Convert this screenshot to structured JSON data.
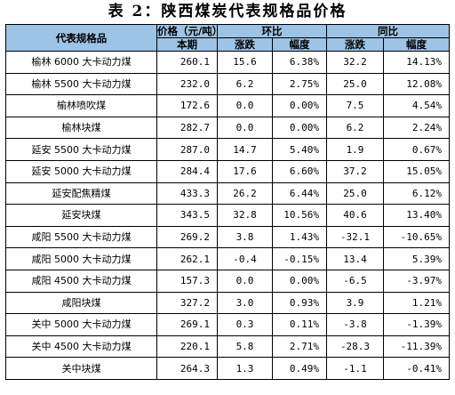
{
  "title": "表 2：陕西煤炭代表规格品价格",
  "header": {
    "name_col": "代表规格品",
    "price_col": "价格（元/吨）",
    "price_sub": "本期",
    "mom": "环比",
    "yoy": "同比",
    "change": "涨跌",
    "pct": "幅度"
  },
  "rows": [
    {
      "name": "榆林 6000 大卡动力煤",
      "price": "260.1",
      "mom_chg": "15.6",
      "mom_pct": "6.38%",
      "yoy_chg": "32.2",
      "yoy_pct": "14.13%"
    },
    {
      "name": "榆林 5500 大卡动力煤",
      "price": "232.0",
      "mom_chg": "6.2",
      "mom_pct": "2.75%",
      "yoy_chg": "25.0",
      "yoy_pct": "12.08%"
    },
    {
      "name": "榆林喷吹煤",
      "price": "172.6",
      "mom_chg": "0.0",
      "mom_pct": "0.00%",
      "yoy_chg": "7.5",
      "yoy_pct": "4.54%"
    },
    {
      "name": "榆林块煤",
      "price": "282.7",
      "mom_chg": "0.0",
      "mom_pct": "0.00%",
      "yoy_chg": "6.2",
      "yoy_pct": "2.24%"
    },
    {
      "name": "延安 5500 大卡动力煤",
      "price": "287.0",
      "mom_chg": "14.7",
      "mom_pct": "5.40%",
      "yoy_chg": "1.9",
      "yoy_pct": "0.67%"
    },
    {
      "name": "延安 5000 大卡动力煤",
      "price": "284.4",
      "mom_chg": "17.6",
      "mom_pct": "6.60%",
      "yoy_chg": "37.2",
      "yoy_pct": "15.05%"
    },
    {
      "name": "延安配焦精煤",
      "price": "433.3",
      "mom_chg": "26.2",
      "mom_pct": "6.44%",
      "yoy_chg": "25.0",
      "yoy_pct": "6.12%"
    },
    {
      "name": "延安块煤",
      "price": "343.5",
      "mom_chg": "32.8",
      "mom_pct": "10.56%",
      "yoy_chg": "40.6",
      "yoy_pct": "13.40%"
    },
    {
      "name": "咸阳 5500 大卡动力煤",
      "price": "269.2",
      "mom_chg": "3.8",
      "mom_pct": "1.43%",
      "yoy_chg": "-32.1",
      "yoy_pct": "-10.65%"
    },
    {
      "name": "咸阳 5000 大卡动力煤",
      "price": "262.1",
      "mom_chg": "-0.4",
      "mom_pct": "-0.15%",
      "yoy_chg": "13.4",
      "yoy_pct": "5.39%"
    },
    {
      "name": "咸阳 4500 大卡动力煤",
      "price": "157.3",
      "mom_chg": "0.0",
      "mom_pct": "0.00%",
      "yoy_chg": "-6.5",
      "yoy_pct": "-3.97%"
    },
    {
      "name": "咸阳块煤",
      "price": "327.2",
      "mom_chg": "3.0",
      "mom_pct": "0.93%",
      "yoy_chg": "3.9",
      "yoy_pct": "1.21%"
    },
    {
      "name": "关中 5000 大卡动力煤",
      "price": "269.1",
      "mom_chg": "0.3",
      "mom_pct": "0.11%",
      "yoy_chg": "-3.8",
      "yoy_pct": "-1.39%"
    },
    {
      "name": "关中 4500 大卡动力煤",
      "price": "220.1",
      "mom_chg": "5.8",
      "mom_pct": "2.71%",
      "yoy_chg": "-28.3",
      "yoy_pct": "-11.39%"
    },
    {
      "name": "关中块煤",
      "price": "264.3",
      "mom_chg": "1.3",
      "mom_pct": "0.49%",
      "yoy_chg": "-1.1",
      "yoy_pct": "-0.41%"
    }
  ]
}
